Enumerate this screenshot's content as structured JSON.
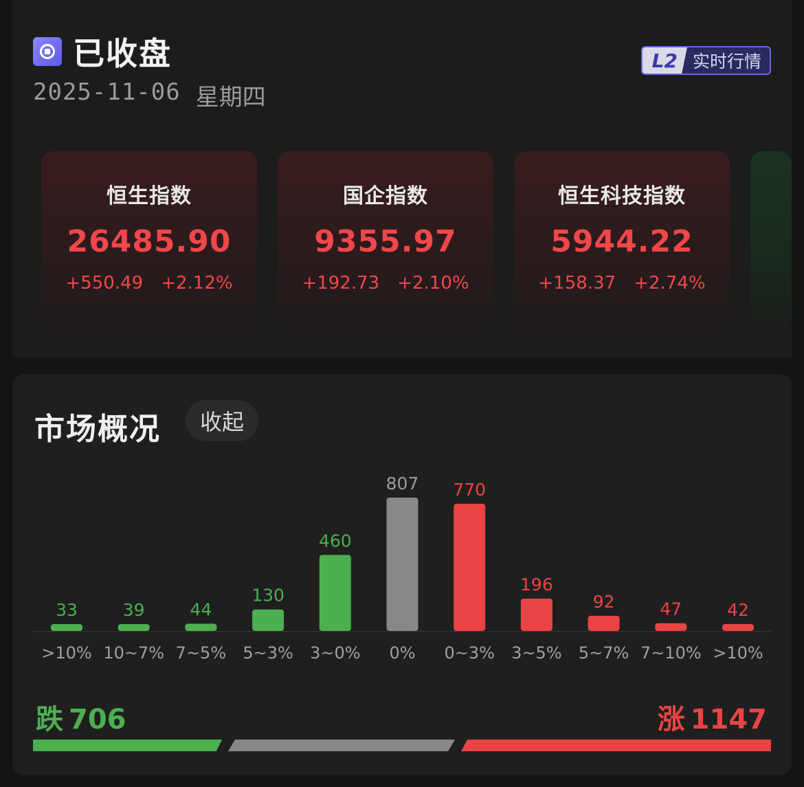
{
  "header": {
    "status": "已收盘",
    "date": "2025-11-06",
    "weekday": "星期四",
    "badge_l2": "L2",
    "badge_text": "实时行情"
  },
  "indices": [
    {
      "name": "恒生指数",
      "value": "26485.90",
      "change": "+550.49",
      "pct": "+2.12%"
    },
    {
      "name": "国企指数",
      "value": "9355.97",
      "change": "+192.73",
      "pct": "+2.10%"
    },
    {
      "name": "恒生科技指数",
      "value": "5944.22",
      "change": "+158.37",
      "pct": "+2.74%"
    }
  ],
  "market": {
    "title": "市场概况",
    "collapse_label": "收起",
    "down_label": "跌",
    "down_count": "706",
    "up_label": "涨",
    "up_count": "1147",
    "breadth": {
      "down": 706,
      "flat": 807,
      "up": 1147
    }
  },
  "chart_data": {
    "type": "bar",
    "categories": [
      ">10%",
      "10~7%",
      "7~5%",
      "5~3%",
      "3~0%",
      "0%",
      "0~3%",
      "3~5%",
      "5~7%",
      "7~10%",
      ">10%"
    ],
    "values": [
      33,
      39,
      44,
      130,
      460,
      807,
      770,
      196,
      92,
      47,
      42
    ],
    "colors": [
      "#4caf50",
      "#4caf50",
      "#4caf50",
      "#4caf50",
      "#4caf50",
      "#888888",
      "#e94444",
      "#e94444",
      "#e94444",
      "#e94444",
      "#e94444"
    ],
    "label_colors": [
      "#4caf50",
      "#4caf50",
      "#4caf50",
      "#4caf50",
      "#4caf50",
      "#9a9a9a",
      "#e94444",
      "#e94444",
      "#e94444",
      "#e94444",
      "#e94444"
    ],
    "title": "",
    "xlabel": "",
    "ylabel": "",
    "ylim": [
      0,
      807
    ],
    "grid": false
  }
}
